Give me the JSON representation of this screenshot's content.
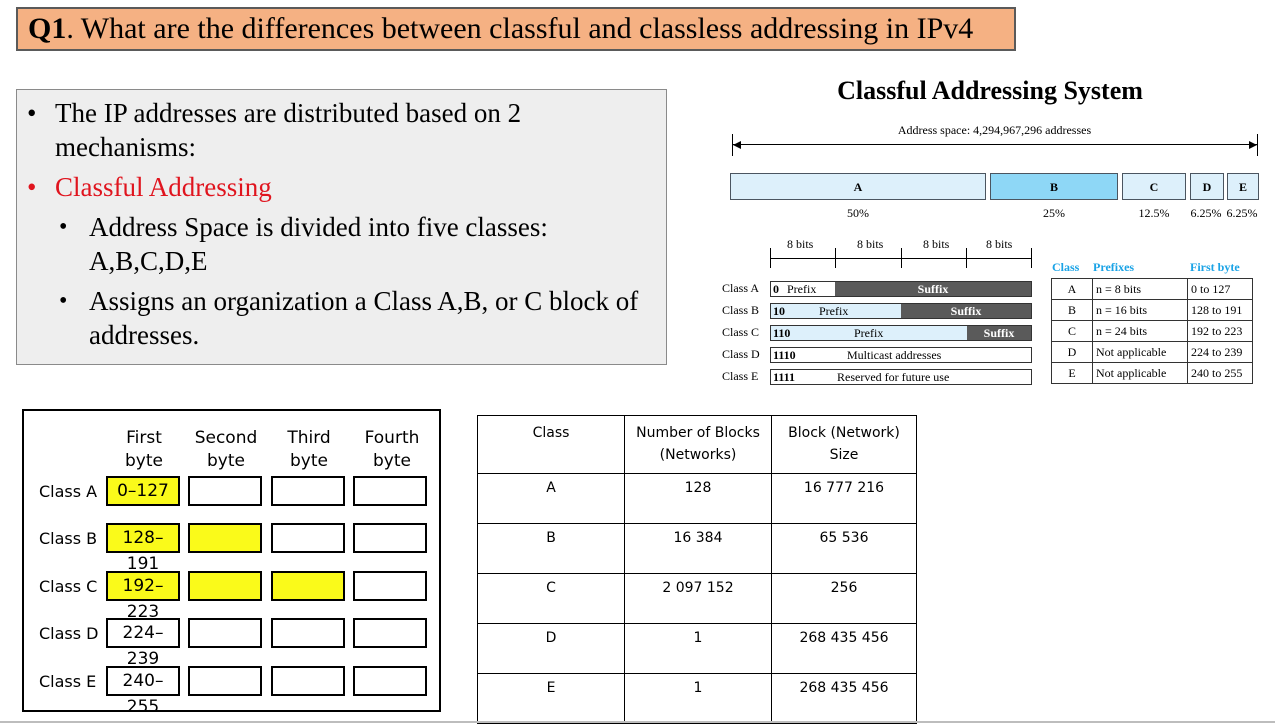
{
  "title": {
    "q": "Q1",
    "text": ". What are the differences between classful and classless addressing in IPv4"
  },
  "bullets": {
    "b1": "The IP addresses are distributed based on 2 mechanisms:",
    "b2": "Classful Addressing",
    "b3": "Address Space is divided into five classes: A,B,C,D,E",
    "b4": "Assigns an organization a Class A,B, or C block of addresses.",
    "dot": "•"
  },
  "diagram": {
    "title": "Classful Addressing System",
    "address_space": "Address space: 4,294,967,296 addresses",
    "segments": [
      "A",
      "B",
      "C",
      "D",
      "E"
    ],
    "percents": [
      "50%",
      "25%",
      "12.5%",
      "6.25%",
      "6.25%"
    ],
    "bits": [
      "8 bits",
      "8 bits",
      "8 bits",
      "8 bits"
    ],
    "rows": [
      {
        "label": "Class A",
        "prefix_bits": "0",
        "p1": "Prefix",
        "suffix": "Suffix"
      },
      {
        "label": "Class B",
        "prefix_bits": "10",
        "p1": "Prefix",
        "suffix": "Suffix"
      },
      {
        "label": "Class C",
        "prefix_bits": "110",
        "p1": "Prefix",
        "suffix": "Suffix"
      },
      {
        "label": "Class D",
        "prefix_bits": "1110",
        "p1": "Multicast addresses"
      },
      {
        "label": "Class E",
        "prefix_bits": "1111",
        "p1": "Reserved for future use"
      }
    ],
    "table_headers": [
      "Class",
      "Prefixes",
      "First byte"
    ],
    "table": [
      [
        "A",
        "n = 8 bits",
        "0 to 127"
      ],
      [
        "B",
        "n = 16 bits",
        "128 to 191"
      ],
      [
        "C",
        "n = 24 bits",
        "192 to 223"
      ],
      [
        "D",
        "Not applicable",
        "224 to 239"
      ],
      [
        "E",
        "Not applicable",
        "240 to 255"
      ]
    ]
  },
  "bytes": {
    "headers": [
      "First\nbyte",
      "Second\nbyte",
      "Third\nbyte",
      "Fourth\nbyte"
    ],
    "rows": [
      {
        "label": "Class A",
        "range": "0–127"
      },
      {
        "label": "Class B",
        "range": "128–191"
      },
      {
        "label": "Class C",
        "range": "192–223"
      },
      {
        "label": "Class D",
        "range": "224–239"
      },
      {
        "label": "Class E",
        "range": "240–255"
      }
    ]
  },
  "blocks": {
    "headers": [
      "Class",
      "Number of Blocks (Networks)",
      "Block (Network) Size"
    ],
    "rows": [
      [
        "A",
        "128",
        "16 777 216"
      ],
      [
        "B",
        "16 384",
        "65 536"
      ],
      [
        "C",
        "2 097 152",
        "256"
      ],
      [
        "D",
        "1",
        "268 435 456"
      ],
      [
        "E",
        "1",
        "268 435 456"
      ]
    ]
  },
  "colors": {
    "title_bg": "#f5b183",
    "highlight": "#fafa1a",
    "red": "#e0141e",
    "blue_heading": "#1aa3e6",
    "seg_light": "#ddf0fb",
    "seg_mid": "#8ed7f6"
  }
}
